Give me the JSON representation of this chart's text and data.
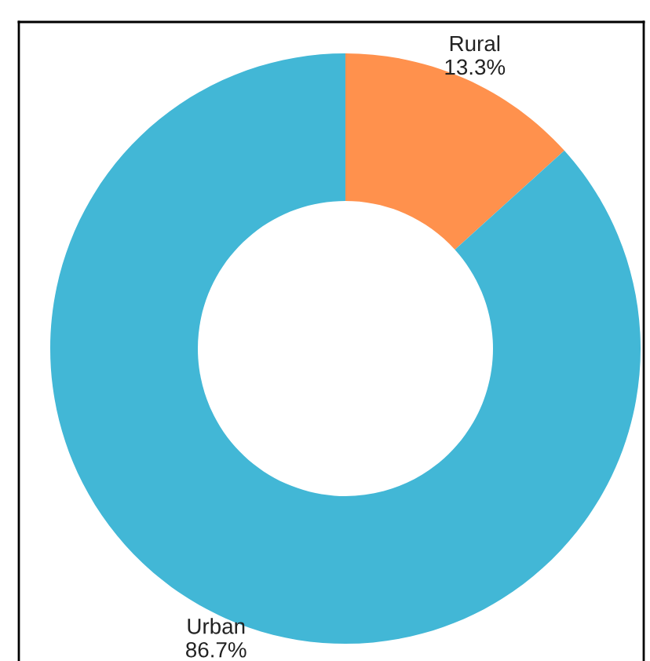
{
  "chart_data": {
    "type": "donut",
    "categories": [
      "Rural",
      "Urban"
    ],
    "values": [
      13.3,
      86.7
    ],
    "colors": [
      "#ff914d",
      "#42b7d6"
    ],
    "value_labels": [
      "13.3%",
      "86.7%"
    ],
    "legend": false
  }
}
